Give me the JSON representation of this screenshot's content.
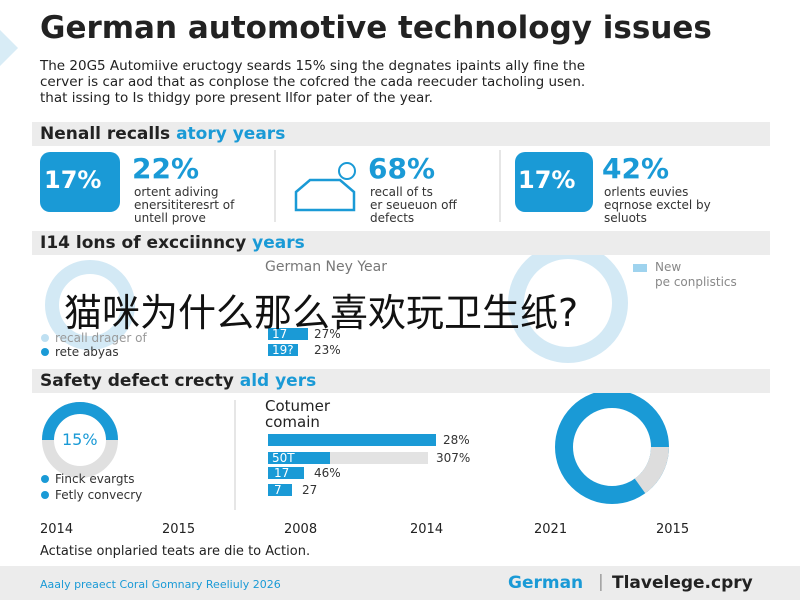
{
  "header": {
    "title": "German automotive technology issues",
    "intro": [
      "The 20G5 Automiive eructogy seards 15% sing the degnates ipaints ally fine the",
      "cerver is car aod that as conplose the cofcred the cada reecuder tacholing usen.",
      "that issing to Is thidgy pore present Ilfor pater of the year."
    ]
  },
  "sections": [
    {
      "heading": [
        "Nenall recalls ",
        "atory years"
      ],
      "stats": [
        {
          "badge": "17%",
          "value": "22%",
          "text": [
            "ortent adiving",
            "enersititeresrt of",
            "untell prove"
          ]
        },
        {
          "value": "68%",
          "text": [
            "recall of ts",
            "er seueuon off",
            "defects"
          ]
        },
        {
          "badge": "17%",
          "value": "42%",
          "text": [
            "orlents euvies",
            "eqrnose exctel by",
            "seluots"
          ]
        }
      ]
    },
    {
      "heading": [
        "I14 lons of excciinncy ",
        "years"
      ],
      "left_legend": [
        "recall drager of",
        "rete abyas"
      ],
      "middle": {
        "title": "German Ney Year",
        "rows": [
          [
            "17",
            "27%"
          ],
          [
            "19?",
            "23%"
          ]
        ]
      },
      "right_legend": [
        "New",
        "pe conplistics"
      ]
    },
    {
      "heading": [
        "Safety defect crecty ",
        "ald yers"
      ],
      "donut_label": "15%",
      "left_legend": [
        "Finck evargts",
        "Fetly convecry"
      ],
      "middle": {
        "title": [
          "Cotumer",
          "comain"
        ],
        "rows": [
          [
            "",
            "28%"
          ],
          [
            "50T",
            "307%"
          ],
          [
            "17",
            "46%"
          ],
          [
            "7",
            "27"
          ]
        ]
      }
    }
  ],
  "years": [
    "2014",
    "2015",
    "2008",
    "2014",
    "2021",
    "2015"
  ],
  "footnote": "Actatise onplaried teats are die to Action.",
  "overlay": "猫咪为什么那么喜欢玩卫生纸?",
  "footer": {
    "left": "Aaaly preaect Coral Gomnary Reeliuly 2026",
    "brand": "German",
    "site": "Tlavelege.cpry"
  }
}
